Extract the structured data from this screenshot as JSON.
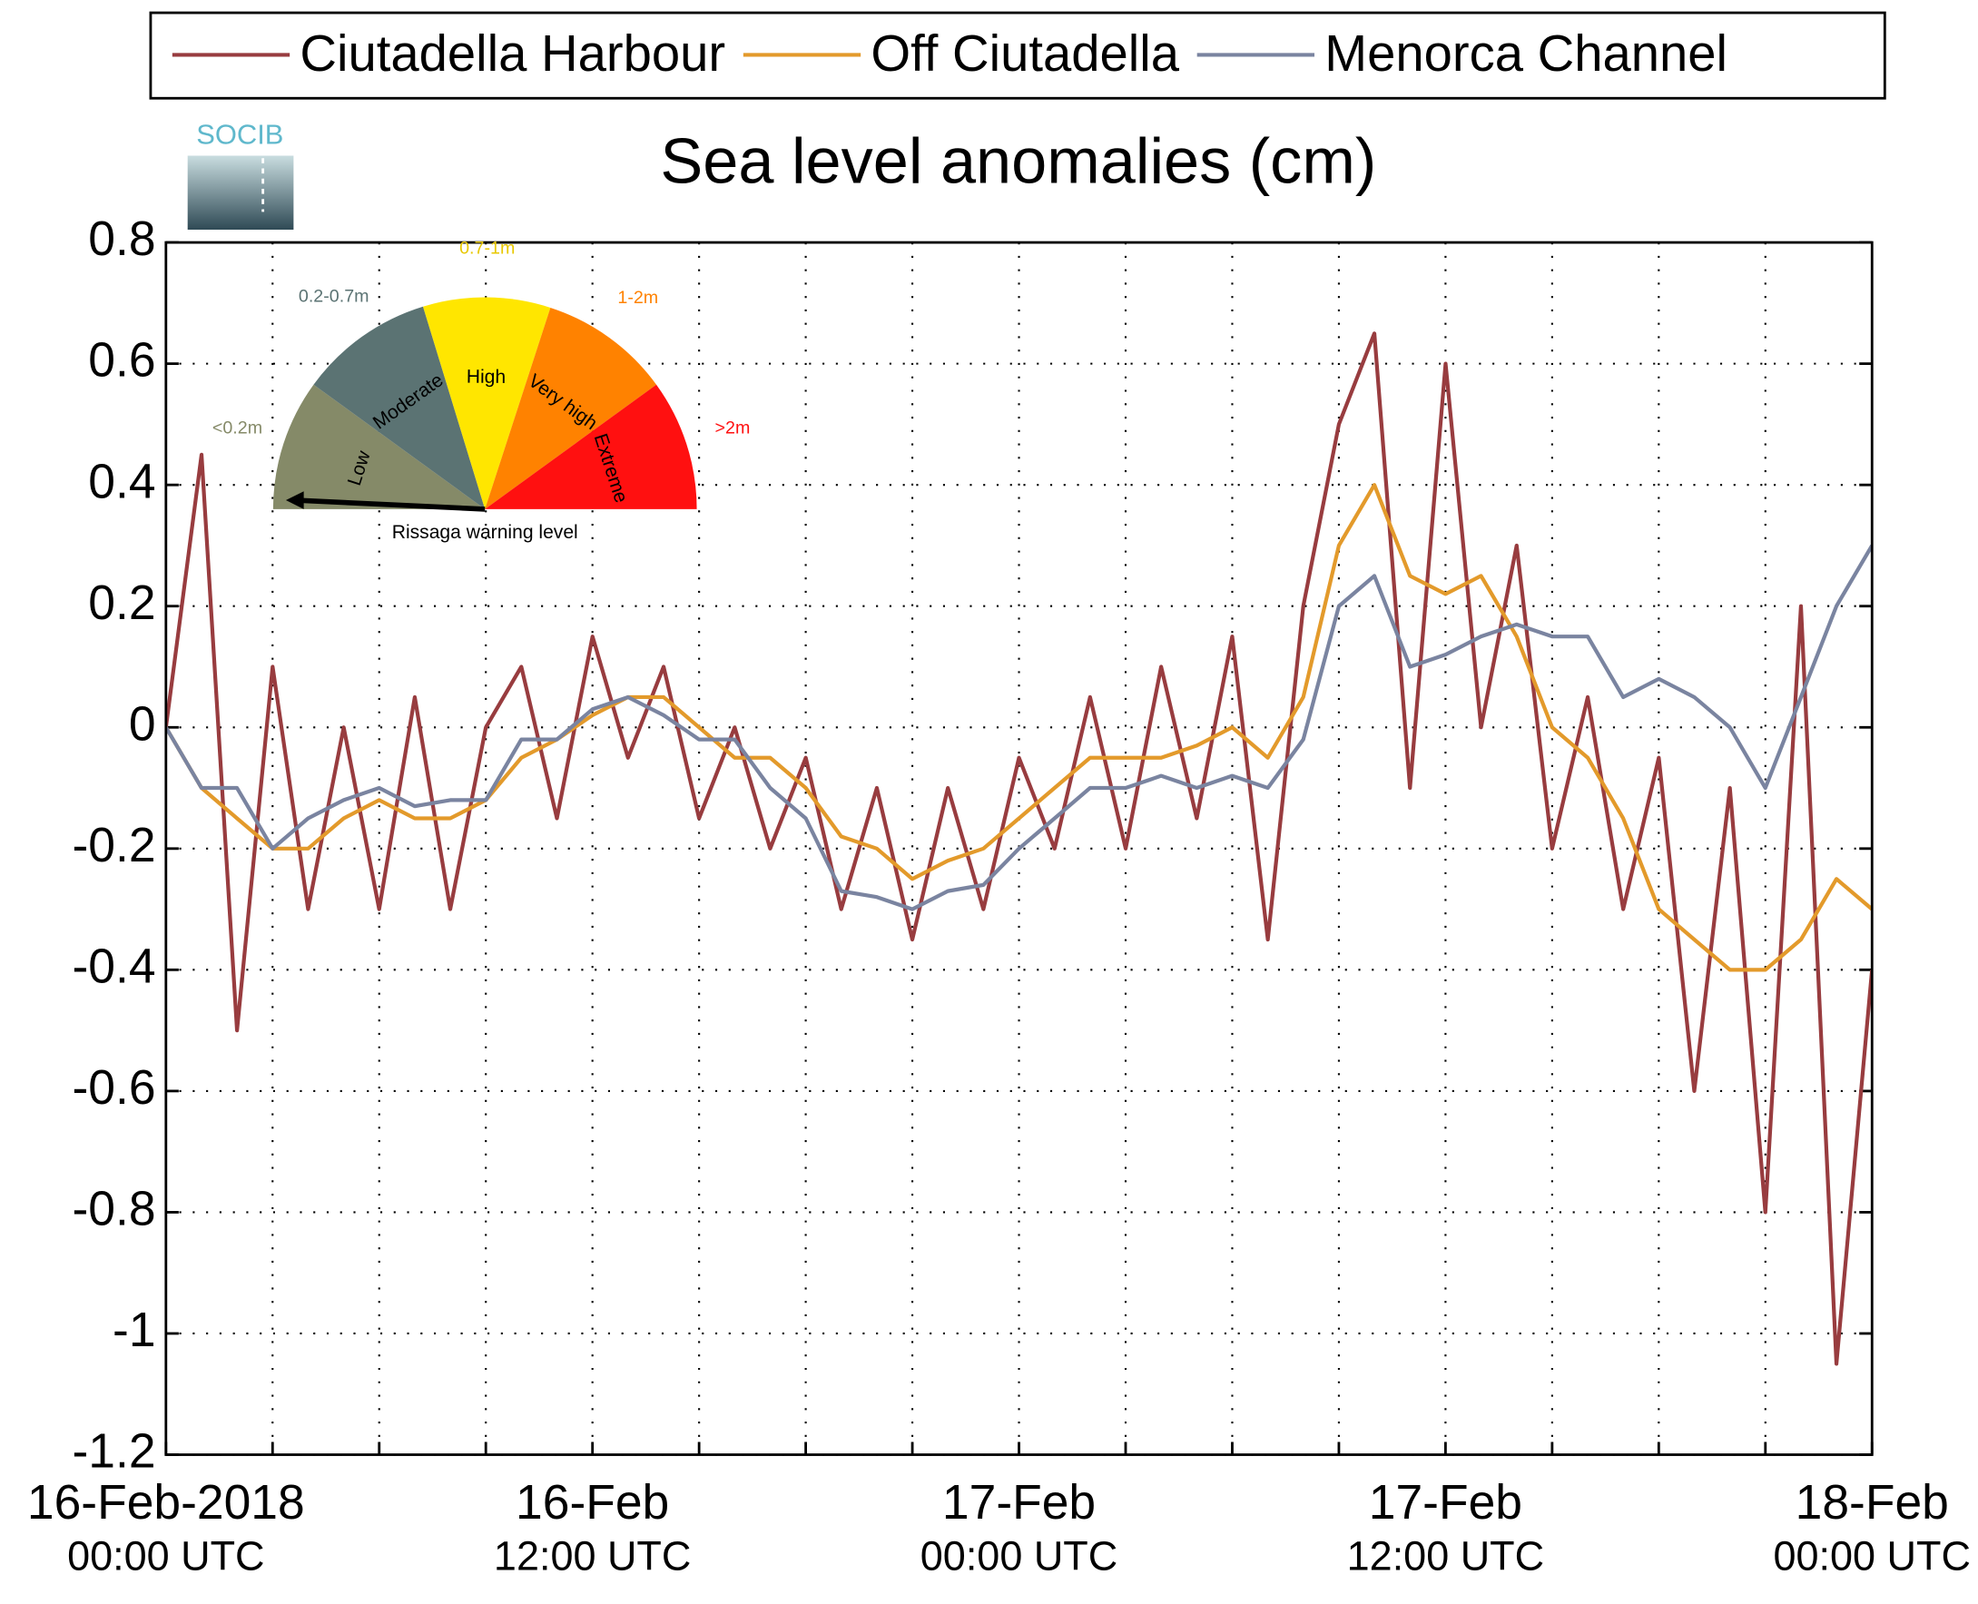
{
  "logo": "SOCIB",
  "chart_data": {
    "type": "line",
    "title": "Sea level anomalies (cm)",
    "legend": "top",
    "grid": true,
    "x": [
      "2018-02-16T00:00",
      "2018-02-16T01:00",
      "2018-02-16T02:00",
      "2018-02-16T03:00",
      "2018-02-16T04:00",
      "2018-02-16T05:00",
      "2018-02-16T06:00",
      "2018-02-16T07:00",
      "2018-02-16T08:00",
      "2018-02-16T09:00",
      "2018-02-16T10:00",
      "2018-02-16T11:00",
      "2018-02-16T12:00",
      "2018-02-16T13:00",
      "2018-02-16T14:00",
      "2018-02-16T15:00",
      "2018-02-16T16:00",
      "2018-02-16T17:00",
      "2018-02-16T18:00",
      "2018-02-16T19:00",
      "2018-02-16T20:00",
      "2018-02-16T21:00",
      "2018-02-16T22:00",
      "2018-02-16T23:00",
      "2018-02-17T00:00",
      "2018-02-17T01:00",
      "2018-02-17T02:00",
      "2018-02-17T03:00",
      "2018-02-17T04:00",
      "2018-02-17T05:00",
      "2018-02-17T06:00",
      "2018-02-17T07:00",
      "2018-02-17T08:00",
      "2018-02-17T09:00",
      "2018-02-17T10:00",
      "2018-02-17T11:00",
      "2018-02-17T12:00",
      "2018-02-17T13:00",
      "2018-02-17T14:00",
      "2018-02-17T15:00",
      "2018-02-17T16:00",
      "2018-02-17T17:00",
      "2018-02-17T18:00",
      "2018-02-17T19:00",
      "2018-02-17T20:00",
      "2018-02-17T21:00",
      "2018-02-17T22:00",
      "2018-02-17T23:00",
      "2018-02-18T00:00"
    ],
    "series": [
      {
        "name": "Ciutadella Harbour",
        "color": "#983c3f",
        "values": [
          0.0,
          0.45,
          -0.5,
          0.1,
          -0.3,
          0.0,
          -0.3,
          0.05,
          -0.3,
          0.0,
          0.1,
          -0.15,
          0.15,
          -0.05,
          0.1,
          -0.15,
          0.0,
          -0.2,
          -0.05,
          -0.3,
          -0.1,
          -0.35,
          -0.1,
          -0.3,
          -0.05,
          -0.2,
          0.05,
          -0.2,
          0.1,
          -0.15,
          0.15,
          -0.35,
          0.2,
          0.5,
          0.65,
          -0.1,
          0.6,
          0.0,
          0.3,
          -0.2,
          0.05,
          -0.3,
          -0.05,
          -0.6,
          -0.1,
          -0.8,
          0.2,
          -1.05,
          -0.4
        ]
      },
      {
        "name": "Off Ciutadella",
        "color": "#e39a2b",
        "values": [
          0.0,
          -0.1,
          -0.15,
          -0.2,
          -0.2,
          -0.15,
          -0.12,
          -0.15,
          -0.15,
          -0.12,
          -0.05,
          -0.02,
          0.02,
          0.05,
          0.05,
          0.0,
          -0.05,
          -0.05,
          -0.1,
          -0.18,
          -0.2,
          -0.25,
          -0.22,
          -0.2,
          -0.15,
          -0.1,
          -0.05,
          -0.05,
          -0.05,
          -0.03,
          0.0,
          -0.05,
          0.05,
          0.3,
          0.4,
          0.25,
          0.22,
          0.25,
          0.15,
          0.0,
          -0.05,
          -0.15,
          -0.3,
          -0.35,
          -0.4,
          -0.4,
          -0.35,
          -0.25,
          -0.3
        ]
      },
      {
        "name": "Menorca Channel",
        "color": "#7a84a0",
        "values": [
          0.0,
          -0.1,
          -0.1,
          -0.2,
          -0.15,
          -0.12,
          -0.1,
          -0.13,
          -0.12,
          -0.12,
          -0.02,
          -0.02,
          0.03,
          0.05,
          0.02,
          -0.02,
          -0.02,
          -0.1,
          -0.15,
          -0.27,
          -0.28,
          -0.3,
          -0.27,
          -0.26,
          -0.2,
          -0.15,
          -0.1,
          -0.1,
          -0.08,
          -0.1,
          -0.08,
          -0.1,
          -0.02,
          0.2,
          0.25,
          0.1,
          0.12,
          0.15,
          0.17,
          0.15,
          0.15,
          0.05,
          0.08,
          0.05,
          0.0,
          -0.1,
          0.05,
          0.2,
          0.3
        ]
      }
    ],
    "xlim": [
      "2018-02-16T00:00",
      "2018-02-18T00:00"
    ],
    "xticks": [
      {
        "value": "2018-02-16T00:00",
        "label": [
          "16-Feb-2018",
          "00:00 UTC"
        ]
      },
      {
        "value": "2018-02-16T12:00",
        "label": [
          "16-Feb",
          "12:00 UTC"
        ]
      },
      {
        "value": "2018-02-17T00:00",
        "label": [
          "17-Feb",
          "00:00 UTC"
        ]
      },
      {
        "value": "2018-02-17T12:00",
        "label": [
          "17-Feb",
          "12:00 UTC"
        ]
      },
      {
        "value": "2018-02-18T00:00",
        "label": [
          "18-Feb",
          "00:00 UTC"
        ]
      }
    ],
    "xminor_ticks": [
      "2018-02-16T03:00",
      "2018-02-16T06:00",
      "2018-02-16T09:00",
      "2018-02-16T15:00",
      "2018-02-16T18:00",
      "2018-02-16T21:00",
      "2018-02-17T03:00",
      "2018-02-17T06:00",
      "2018-02-17T09:00",
      "2018-02-17T15:00",
      "2018-02-17T18:00",
      "2018-02-17T21:00"
    ],
    "ylim": [
      -1.2,
      0.8
    ],
    "yticks": [
      -1.2,
      -1,
      -0.8,
      -0.6,
      -0.4,
      -0.2,
      0,
      0.2,
      0.4,
      0.6,
      0.8
    ],
    "inset": {
      "caption": "Rissaga warning level",
      "levels": [
        {
          "name": "Low",
          "range": "<0.2m",
          "color": "#858a68"
        },
        {
          "name": "Moderate",
          "range": "0.2-0.7m",
          "color": "#5b7373"
        },
        {
          "name": "High",
          "range": "0.7-1m",
          "color": "#ffe600"
        },
        {
          "name": "Very high",
          "range": "1-2m",
          "color": "#ff8200"
        },
        {
          "name": "Extreme",
          "range": ">2m",
          "color": "#ff1010"
        }
      ]
    }
  }
}
